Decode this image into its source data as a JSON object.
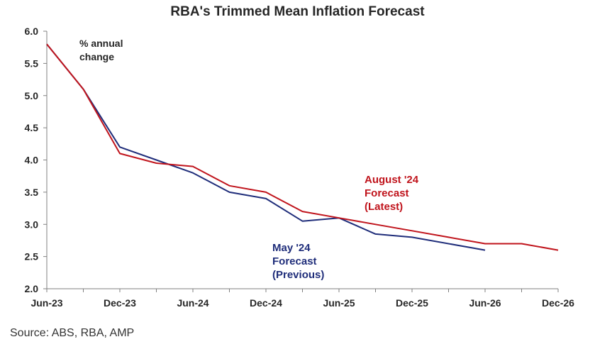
{
  "chart_data": {
    "type": "line",
    "title": "RBA's Trimmed Mean Inflation Forecast",
    "unit_label_lines": [
      "% annual",
      "change"
    ],
    "x_tick_labels": [
      "Jun-23",
      "Dec-23",
      "Jun-24",
      "Dec-24",
      "Jun-25",
      "Dec-25",
      "Jun-26",
      "Dec-26"
    ],
    "y_tick_labels": [
      "2.0",
      "2.5",
      "3.0",
      "3.5",
      "4.0",
      "4.5",
      "5.0",
      "5.5",
      "6.0"
    ],
    "x_range": [
      "2023-06",
      "2026-12"
    ],
    "ylim": [
      2.0,
      6.0
    ],
    "grid": false,
    "series": [
      {
        "name_lines": [
          "May '24",
          "Forecast",
          "(Previous)"
        ],
        "color": "#1f2d7a",
        "points": [
          {
            "x": "2023-06",
            "y": 5.8
          },
          {
            "x": "2023-09",
            "y": 5.1
          },
          {
            "x": "2023-12",
            "y": 4.2
          },
          {
            "x": "2024-03",
            "y": 4.0
          },
          {
            "x": "2024-06",
            "y": 3.8
          },
          {
            "x": "2024-09",
            "y": 3.5
          },
          {
            "x": "2024-12",
            "y": 3.4
          },
          {
            "x": "2025-03",
            "y": 3.05
          },
          {
            "x": "2025-06",
            "y": 3.1
          },
          {
            "x": "2025-09",
            "y": 2.85
          },
          {
            "x": "2025-12",
            "y": 2.8
          },
          {
            "x": "2026-06",
            "y": 2.6
          }
        ]
      },
      {
        "name_lines": [
          "August '24",
          "Forecast",
          "(Latest)"
        ],
        "color": "#c0141c",
        "points": [
          {
            "x": "2023-06",
            "y": 5.8
          },
          {
            "x": "2023-09",
            "y": 5.1
          },
          {
            "x": "2023-12",
            "y": 4.1
          },
          {
            "x": "2024-03",
            "y": 3.95
          },
          {
            "x": "2024-06",
            "y": 3.9
          },
          {
            "x": "2024-09",
            "y": 3.6
          },
          {
            "x": "2024-12",
            "y": 3.5
          },
          {
            "x": "2025-03",
            "y": 3.2
          },
          {
            "x": "2025-06",
            "y": 3.1
          },
          {
            "x": "2025-09",
            "y": 3.0
          },
          {
            "x": "2025-12",
            "y": 2.9
          },
          {
            "x": "2026-03",
            "y": 2.8
          },
          {
            "x": "2026-06",
            "y": 2.7
          },
          {
            "x": "2026-09",
            "y": 2.7
          },
          {
            "x": "2026-12",
            "y": 2.6
          }
        ]
      }
    ]
  },
  "source_text": "Source: ABS, RBA, AMP",
  "colors": {
    "axis": "#808080",
    "text": "#262626",
    "latest_label": "#c0141c",
    "previous_label": "#1f2d7a"
  }
}
